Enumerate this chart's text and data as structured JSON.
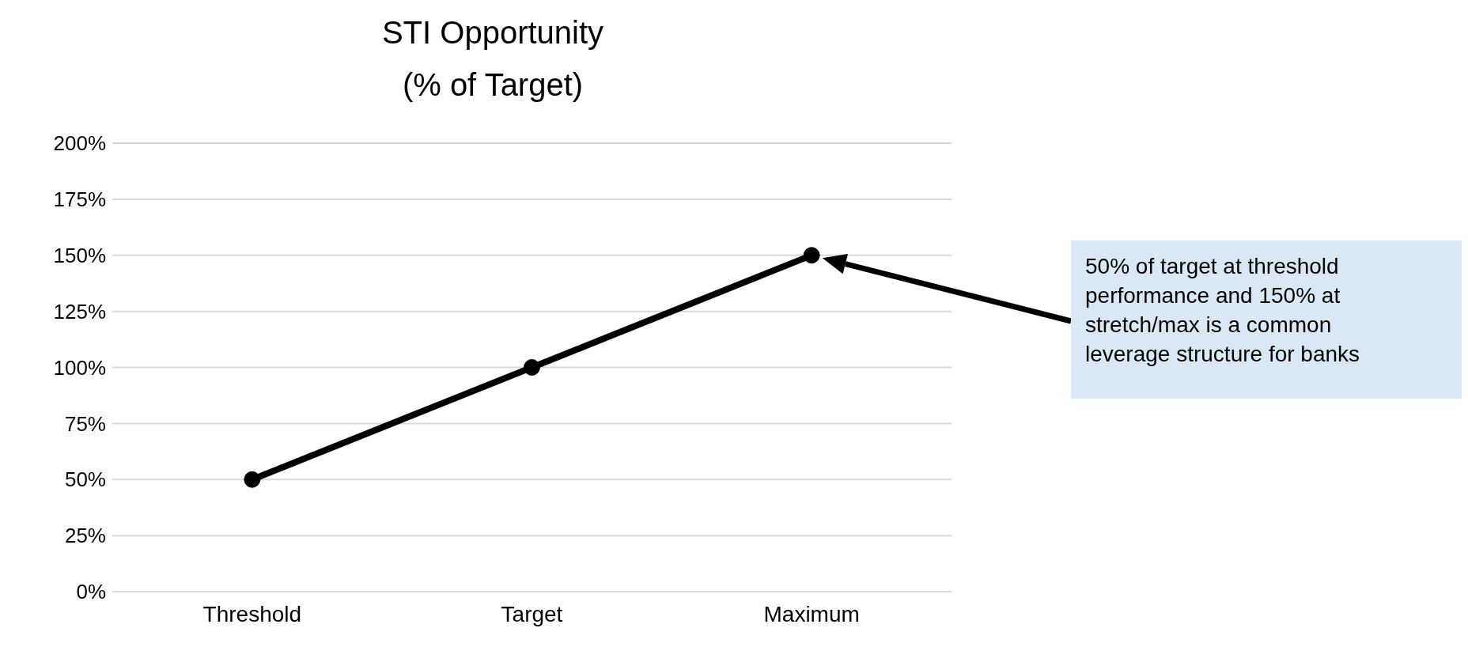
{
  "chart_data": {
    "type": "line",
    "title": "STI Opportunity\n(% of Target)",
    "categories": [
      "Threshold",
      "Target",
      "Maximum"
    ],
    "series": [
      {
        "color": "#000000",
        "values": [
          50,
          100,
          150
        ]
      }
    ],
    "ylim": [
      0,
      200
    ],
    "yticks": [
      {
        "value": 0,
        "label": "0%"
      },
      {
        "value": 25,
        "label": "25%"
      },
      {
        "value": 50,
        "label": "50%"
      },
      {
        "value": 75,
        "label": "75%"
      },
      {
        "value": 100,
        "label": "100%"
      },
      {
        "value": 125,
        "label": "125%"
      },
      {
        "value": 150,
        "label": "150%"
      },
      {
        "value": 175,
        "label": "175%"
      },
      {
        "value": 200,
        "label": "200%"
      }
    ],
    "grid": "y",
    "legend": false,
    "marker": "circle",
    "line_style": "solid",
    "annotations": [
      "50% of target at threshold performance and 150% at stretch/max is a common leverage structure for banks"
    ]
  }
}
